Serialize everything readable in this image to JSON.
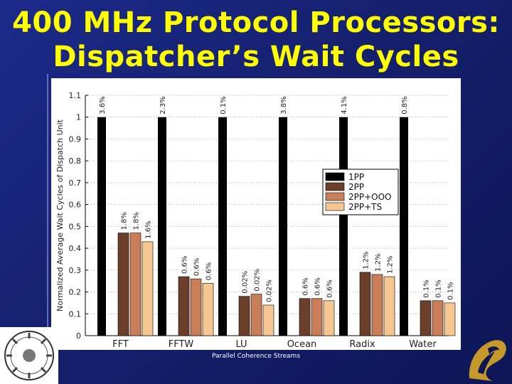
{
  "slide": {
    "title_line1": "400 MHz Protocol Processors:",
    "title_line2": "Dispatcher’s Wait Cycles",
    "footer": "Parallel Coherence Streams"
  },
  "colors": {
    "background": "#1a2680",
    "title": "#ffff00",
    "series": [
      "#000000",
      "#6b3f2a",
      "#c97e59",
      "#f6c690"
    ]
  },
  "chart_data": {
    "type": "bar",
    "title": "",
    "xlabel": "",
    "ylabel": "Normalized Average Wait Cycles of Dispatch Unit",
    "ylim": [
      0,
      1.1
    ],
    "yticks": [
      "0",
      "0.1",
      "0.2",
      "0.3",
      "0.4",
      "0.5",
      "0.6",
      "0.7",
      "0.8",
      "0.9",
      "1",
      "1.1"
    ],
    "legend_position": "right",
    "grid": "dotted horizontal",
    "categories": [
      "FFT",
      "FFTW",
      "LU",
      "Ocean",
      "Radix",
      "Water"
    ],
    "series": [
      {
        "name": "1PP",
        "values": [
          1.0,
          1.0,
          1.0,
          1.0,
          1.0,
          1.0
        ],
        "labels": [
          "3.6%",
          "2.3%",
          "0.1%",
          "3.8%",
          "4.1%",
          "0.8%"
        ]
      },
      {
        "name": "2PP",
        "values": [
          0.47,
          0.27,
          0.18,
          0.17,
          0.29,
          0.16
        ],
        "labels": [
          "1.8%",
          "0.6%",
          "0.02%",
          "0.6%",
          "1.2%",
          "0.1%"
        ]
      },
      {
        "name": "2PP+OOO",
        "values": [
          0.47,
          0.26,
          0.19,
          0.17,
          0.28,
          0.16
        ],
        "labels": [
          "1.8%",
          "0.6%",
          "0.02%",
          "0.6%",
          "1.2%",
          "0.1%"
        ]
      },
      {
        "name": "2PP+TS",
        "values": [
          0.43,
          0.24,
          0.14,
          0.16,
          0.27,
          0.15
        ],
        "labels": [
          "1.6%",
          "0.6%",
          "0.02%",
          "0.6%",
          "1.2%",
          "0.1%"
        ]
      }
    ]
  }
}
